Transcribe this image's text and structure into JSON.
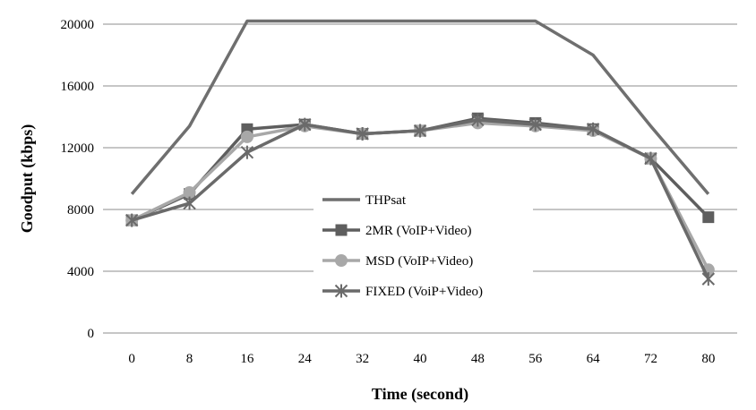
{
  "chart_data": {
    "type": "line",
    "title": "",
    "xlabel": "Time (second)",
    "ylabel": "Goodput (kbps)",
    "x": [
      0,
      8,
      16,
      24,
      32,
      40,
      48,
      56,
      64,
      72,
      80
    ],
    "x_tick_labels": [
      "0",
      "8",
      "16",
      "24",
      "32",
      "40",
      "48",
      "56",
      "64",
      "72",
      "80"
    ],
    "y_tick_labels": [
      "0",
      "4000",
      "8000",
      "12000",
      "16000",
      "20000"
    ],
    "ylim": [
      0,
      20000
    ],
    "grid": "horizontal",
    "legend_position": "center",
    "series": [
      {
        "name": "THPsat",
        "marker": "none",
        "color": "#6f6f6f",
        "values": [
          9000,
          13400,
          20200,
          20200,
          20200,
          20200,
          20200,
          20200,
          18000,
          13400,
          9000
        ]
      },
      {
        "name": "2MR (VoIP+Video)",
        "marker": "square",
        "color": "#5e5e5e",
        "values": [
          7300,
          9000,
          13200,
          13500,
          12900,
          13100,
          13900,
          13600,
          13200,
          11300,
          7500
        ]
      },
      {
        "name": "MSD (VoIP+Video)",
        "marker": "circle",
        "color": "#a8a8a8",
        "values": [
          7300,
          9100,
          12700,
          13400,
          12900,
          13100,
          13600,
          13400,
          13100,
          11300,
          4100
        ]
      },
      {
        "name": "FIXED (VoiP+Video)",
        "marker": "star",
        "color": "#6a6a6a",
        "values": [
          7300,
          8400,
          11700,
          13500,
          12900,
          13100,
          13800,
          13500,
          13200,
          11300,
          3500
        ]
      }
    ]
  }
}
